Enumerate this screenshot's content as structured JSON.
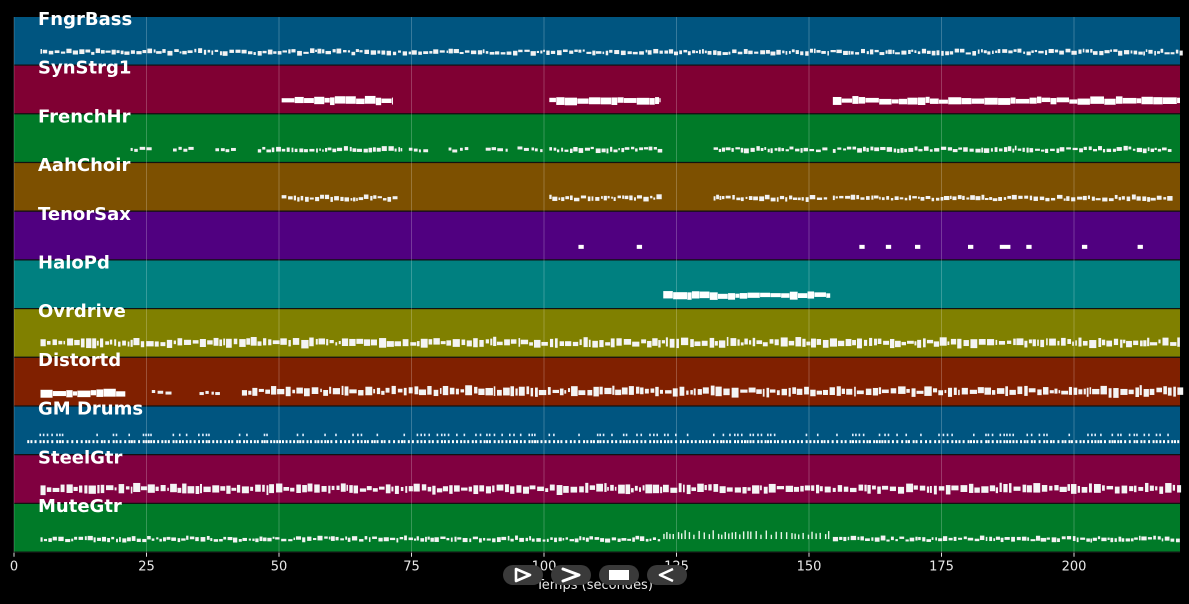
{
  "tracks": [
    {
      "name": "FngrBass",
      "color": "#005580"
    },
    {
      "name": "SynStrg1",
      "color": "#800033"
    },
    {
      "name": "FrenchHr",
      "color": "#007a28"
    },
    {
      "name": "AahChoir",
      "color": "#7d5000"
    },
    {
      "name": "TenorSax",
      "color": "#500080"
    },
    {
      "name": "HaloPd",
      "color": "#008080"
    },
    {
      "name": "Ovrdrive",
      "color": "#808000"
    },
    {
      "name": "Distortd",
      "color": "#802000"
    },
    {
      "name": "GM Drums",
      "color": "#005580"
    },
    {
      "name": "SteelGtr",
      "color": "#800040"
    },
    {
      "name": "MuteGtr",
      "color": "#007a28"
    }
  ],
  "axis": {
    "xlabel": "Temps (secondes)",
    "xmin": 0,
    "xmax": 220,
    "ticks": [
      0,
      25,
      50,
      75,
      100,
      125,
      150,
      175,
      200
    ],
    "tick_labels": [
      "0",
      "25",
      "50",
      "75",
      "100",
      "125",
      "150",
      "175",
      "200"
    ],
    "grid": true
  },
  "controls": [
    {
      "name": "play-button",
      "icon": "play-icon"
    },
    {
      "name": "forward-button",
      "icon": "forward-icon"
    },
    {
      "name": "stop-button",
      "icon": "stop-icon"
    },
    {
      "name": "back-button",
      "icon": "back-icon"
    }
  ],
  "note_segments": [
    [
      [
        5,
        220,
        "dense"
      ]
    ],
    [
      [
        50.5,
        71.5,
        "block"
      ],
      [
        101,
        122,
        "block"
      ],
      [
        154.5,
        220,
        "block"
      ]
    ],
    [
      [
        22,
        26,
        "dots"
      ],
      [
        30,
        34,
        "dots"
      ],
      [
        38,
        42,
        "dots"
      ],
      [
        46,
        73,
        "dense"
      ],
      [
        74.5,
        78,
        "dots"
      ],
      [
        82,
        86,
        "dots"
      ],
      [
        89,
        93,
        "dots"
      ],
      [
        95,
        100,
        "dots"
      ],
      [
        101,
        122,
        "dense"
      ],
      [
        132,
        153.5,
        "dense"
      ],
      [
        154.5,
        218,
        "dense"
      ]
    ],
    [
      [
        50.5,
        72,
        "dense"
      ],
      [
        101,
        122,
        "dense"
      ],
      [
        132,
        153.5,
        "dense"
      ],
      [
        154.5,
        218,
        "dense"
      ]
    ],
    [
      [
        106.5,
        107.5,
        "sparse"
      ],
      [
        117.5,
        118.5,
        "sparse"
      ],
      [
        159.5,
        160.5,
        "sparse"
      ],
      [
        164.5,
        165.5,
        "sparse"
      ],
      [
        170,
        171,
        "sparse"
      ],
      [
        180,
        181,
        "sparse"
      ],
      [
        186,
        188,
        "sparse"
      ],
      [
        191,
        192,
        "sparse"
      ],
      [
        201.5,
        202.5,
        "sparse"
      ],
      [
        212,
        213,
        "sparse"
      ]
    ],
    [
      [
        122.5,
        154,
        "block"
      ]
    ],
    [
      [
        5,
        220,
        "bars"
      ]
    ],
    [
      [
        5,
        21,
        "block"
      ],
      [
        26,
        29,
        "dots"
      ],
      [
        35,
        38,
        "dots"
      ],
      [
        43,
        220,
        "bars"
      ]
    ],
    [
      [
        2.5,
        220,
        "drums"
      ]
    ],
    [
      [
        5,
        220,
        "bars"
      ]
    ],
    [
      [
        5,
        122,
        "dense"
      ],
      [
        122.5,
        154,
        "ticks"
      ],
      [
        154.5,
        220,
        "dense"
      ]
    ]
  ]
}
